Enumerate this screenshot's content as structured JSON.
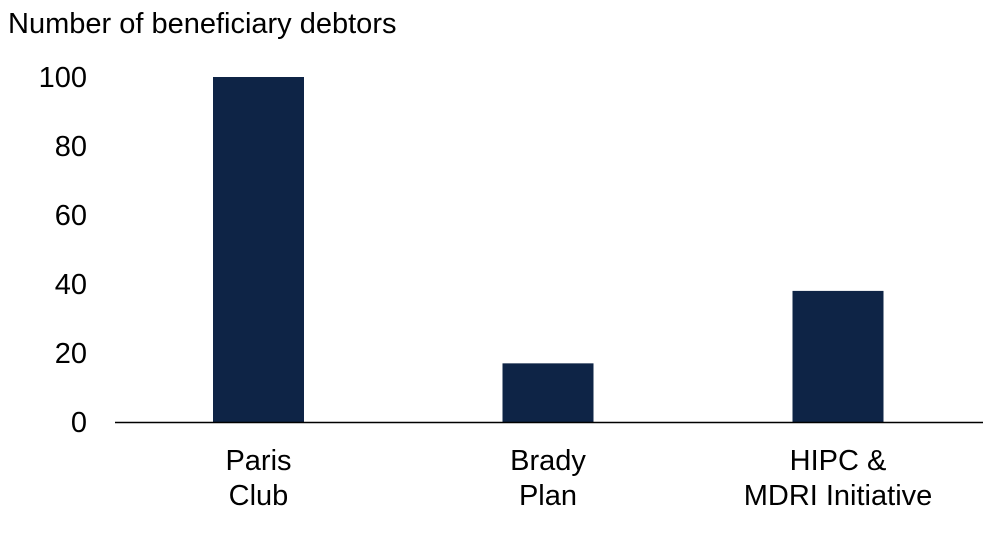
{
  "chart_data": {
    "type": "bar",
    "title": "",
    "ylabel": "Number of beneficiary debtors",
    "xlabel": "",
    "categories": [
      [
        "Paris",
        "Club"
      ],
      [
        "Brady",
        "Plan"
      ],
      [
        "HIPC &",
        "MDRI Initiative"
      ]
    ],
    "values": [
      100,
      17,
      38
    ],
    "ylim": [
      0,
      100
    ],
    "yticks": [
      0,
      20,
      40,
      60,
      80,
      100
    ],
    "grid": false,
    "legend": "none",
    "bar_color": "#0e2446",
    "axis_color": "#000000"
  }
}
